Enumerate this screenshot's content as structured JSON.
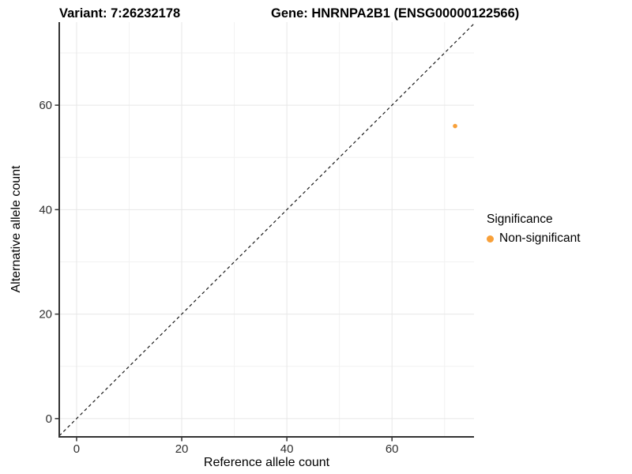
{
  "colors": {
    "point": "#F8A039",
    "axis": "#333333",
    "tick_label": "#303030",
    "grid_major": "#E7E7E7",
    "grid_minor": "#F2F2F2",
    "identity_line": "#1A1A1A",
    "background": "#FFFFFF"
  },
  "chart_data": {
    "type": "scatter",
    "titles": {
      "left": "Variant: 7:26232178",
      "right": "Gene: HNRNPA2B1 (ENSG00000122566)"
    },
    "xlabel": "Reference allele count",
    "ylabel": "Alternative allele count",
    "xlim": [
      -3.3,
      75.6
    ],
    "ylim": [
      -3.5,
      75.9
    ],
    "xticks": [
      0,
      20,
      40,
      60
    ],
    "yticks": [
      0,
      20,
      40,
      60
    ],
    "xminor": [
      10,
      30,
      50,
      70
    ],
    "yminor": [
      10,
      30,
      50,
      70
    ],
    "grid": true,
    "reference_line": {
      "type": "identity",
      "slope": 1,
      "intercept": 0,
      "style": "dashed"
    },
    "series": [
      {
        "name": "Non-significant",
        "color": "#F8A039",
        "points": [
          {
            "x": 72,
            "y": 56
          }
        ]
      }
    ],
    "legend": {
      "title": "Significance",
      "position": "right"
    }
  }
}
